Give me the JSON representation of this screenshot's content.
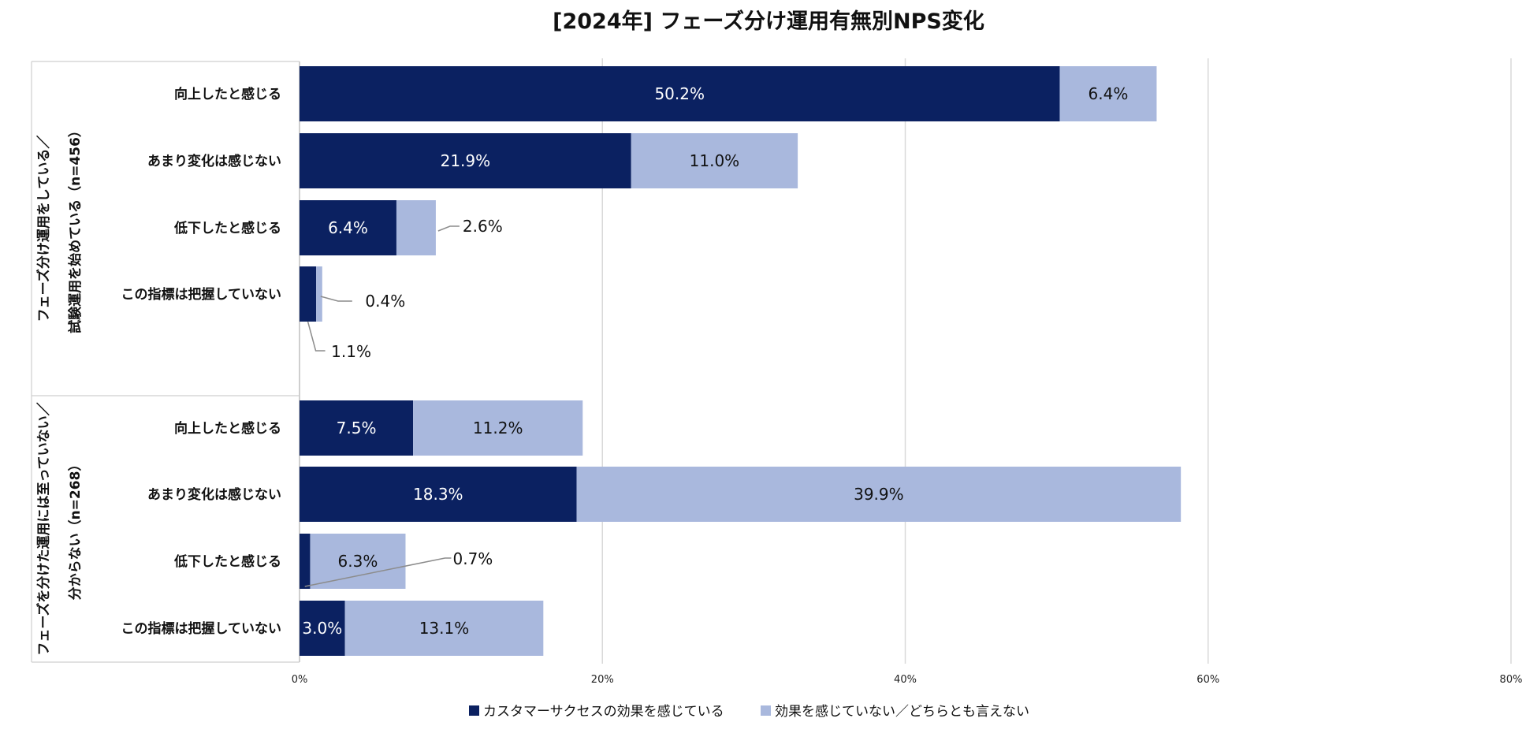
{
  "chart_data": {
    "type": "bar",
    "orientation": "horizontal",
    "stacked": true,
    "title": "[2024年] フェーズ分け運用有無別NPS変化",
    "xlim": [
      0,
      80
    ],
    "x_ticks": [
      "0%",
      "20%",
      "40%",
      "60%",
      "80%"
    ],
    "grid": true,
    "legend_position": "bottom",
    "series": [
      {
        "name": "カスタマーサクセスの効果を感じている",
        "color": "#0b2161"
      },
      {
        "name": "効果を感じていない／どちらとも言えない",
        "color": "#a9b8dd"
      }
    ],
    "groups": [
      {
        "label_line1": "フェーズ分け運用をしている／",
        "label_line2": "試験運用を始めている（n=456）",
        "rows": [
          {
            "category": "向上したと感じる",
            "values": [
              50.2,
              6.4
            ],
            "labels": [
              "50.2%",
              "6.4%"
            ]
          },
          {
            "category": "あまり変化は感じない",
            "values": [
              21.9,
              11.0
            ],
            "labels": [
              "21.9%",
              "11.0%"
            ]
          },
          {
            "category": "低下したと感じる",
            "values": [
              6.4,
              2.6
            ],
            "labels": [
              "6.4%",
              "2.6%"
            ]
          },
          {
            "category": "この指標は把握していない",
            "values": [
              1.1,
              0.4
            ],
            "labels": [
              "1.1%",
              "0.4%"
            ]
          }
        ]
      },
      {
        "label_line1": "フェーズを分けた運用には至っていない／",
        "label_line2": "分からない（n=268）",
        "rows": [
          {
            "category": "向上したと感じる",
            "values": [
              7.5,
              11.2
            ],
            "labels": [
              "7.5%",
              "11.2%"
            ]
          },
          {
            "category": "あまり変化は感じない",
            "values": [
              18.3,
              39.9
            ],
            "labels": [
              "18.3%",
              "39.9%"
            ]
          },
          {
            "category": "低下したと感じる",
            "values": [
              0.7,
              6.3
            ],
            "labels": [
              "0.7%",
              "6.3%"
            ]
          },
          {
            "category": "この指標は把握していない",
            "values": [
              3.0,
              13.1
            ],
            "labels": [
              "3.0%",
              "13.1%"
            ]
          }
        ]
      }
    ]
  }
}
